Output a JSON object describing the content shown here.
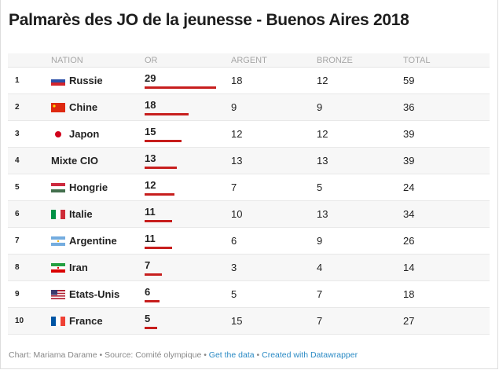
{
  "title": "Palmarès des JO de la jeunesse - Buenos Aires 2018",
  "headers": {
    "nation": "NATION",
    "or": "OR",
    "argent": "ARGENT",
    "bronze": "BRONZE",
    "total": "TOTAL"
  },
  "accent": "#c71e1d",
  "chart_data": {
    "type": "table",
    "title": "Palmarès des JO de la jeunesse - Buenos Aires 2018",
    "columns": [
      "NATION",
      "OR",
      "ARGENT",
      "BRONZE",
      "TOTAL"
    ],
    "bar_column": "OR",
    "bar_max": 29,
    "rows": [
      {
        "rank": "1",
        "nation": "Russie",
        "flag": "russia",
        "or": "29",
        "argent": "18",
        "bronze": "12",
        "total": "59",
        "or_value": 29
      },
      {
        "rank": "2",
        "nation": "Chine",
        "flag": "china",
        "or": "18",
        "argent": "9",
        "bronze": "9",
        "total": "36",
        "or_value": 18
      },
      {
        "rank": "3",
        "nation": "Japon",
        "flag": "japan",
        "or": "15",
        "argent": "12",
        "bronze": "12",
        "total": "39",
        "or_value": 15
      },
      {
        "rank": "4",
        "nation": "Mixte CIO",
        "flag": "none",
        "or": "13",
        "argent": "13",
        "bronze": "13",
        "total": "39",
        "or_value": 13
      },
      {
        "rank": "5",
        "nation": "Hongrie",
        "flag": "hungary",
        "or": "12",
        "argent": "7",
        "bronze": "5",
        "total": "24",
        "or_value": 12
      },
      {
        "rank": "6",
        "nation": "Italie",
        "flag": "italy",
        "or": "11",
        "argent": "10",
        "bronze": "13",
        "total": "34",
        "or_value": 11
      },
      {
        "rank": "7",
        "nation": "Argentine",
        "flag": "argentina",
        "or": "11",
        "argent": "6",
        "bronze": "9",
        "total": "26",
        "or_value": 11
      },
      {
        "rank": "8",
        "nation": "Iran",
        "flag": "iran",
        "or": "7",
        "argent": "3",
        "bronze": "4",
        "total": "14",
        "or_value": 7
      },
      {
        "rank": "9",
        "nation": "Etats-Unis",
        "flag": "usa",
        "or": "6",
        "argent": "5",
        "bronze": "7",
        "total": "18",
        "or_value": 6
      },
      {
        "rank": "10",
        "nation": "France",
        "flag": "france",
        "or": "5",
        "argent": "15",
        "bronze": "7",
        "total": "27",
        "or_value": 5
      }
    ]
  },
  "footer": {
    "chart": "Chart: Mariama Darame",
    "sep": " • ",
    "source": "Source: Comité olympique",
    "get_data": "Get the data",
    "created": "Created with Datawrapper"
  }
}
